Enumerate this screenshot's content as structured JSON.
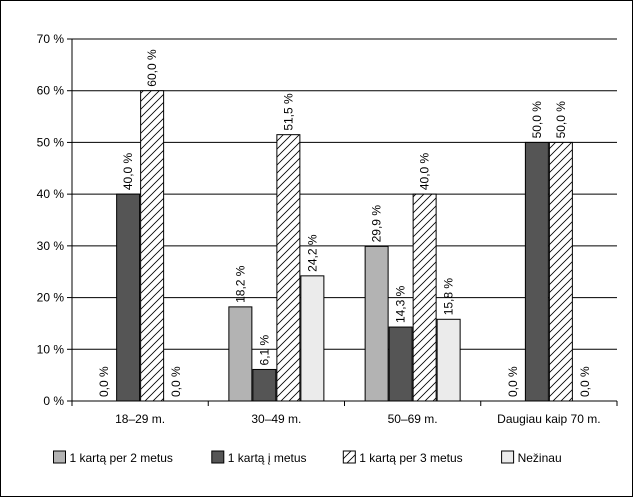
{
  "chart_data": {
    "type": "bar",
    "title": "",
    "xlabel": "",
    "ylabel": "",
    "categories": [
      "18–29 m.",
      "30–49 m.",
      "50–69 m.",
      "Daugiau kaip 70 m."
    ],
    "ylim": [
      0,
      70
    ],
    "yticks": [
      0,
      10,
      20,
      30,
      40,
      50,
      60,
      70
    ],
    "ytick_labels": [
      "0 %",
      "10 %",
      "20 %",
      "30 %",
      "40 %",
      "50 %",
      "60 %",
      "70 %"
    ],
    "grid": true,
    "legend_position": "bottom",
    "series": [
      {
        "name": "1 kartą per 2 metus",
        "values": [
          0.0,
          18.2,
          29.9,
          0.0
        ],
        "labels": [
          "0,0 %",
          "18,2 %",
          "29,9 %",
          "0,0 %"
        ],
        "color": "#b3b3b3",
        "pattern": "solid"
      },
      {
        "name": "1 kartą į metus",
        "values": [
          40.0,
          6.1,
          14.3,
          50.0
        ],
        "labels": [
          "40,0 %",
          "6,1 %",
          "14,3 %",
          "50,0 %"
        ],
        "color": "#555555",
        "pattern": "solid"
      },
      {
        "name": "1 kartą per 3 metus",
        "values": [
          60.0,
          51.5,
          40.0,
          50.0
        ],
        "labels": [
          "60,0 %",
          "51,5 %",
          "40,0 %",
          "50,0 %"
        ],
        "color": "#ffffff",
        "pattern": "hatch"
      },
      {
        "name": "Nežinau",
        "values": [
          0.0,
          24.2,
          15.8,
          0.0
        ],
        "labels": [
          "0,0 %",
          "24,2 %",
          "15,8 %",
          "0,0 %"
        ],
        "color": "#ebebeb",
        "pattern": "solid"
      }
    ]
  }
}
